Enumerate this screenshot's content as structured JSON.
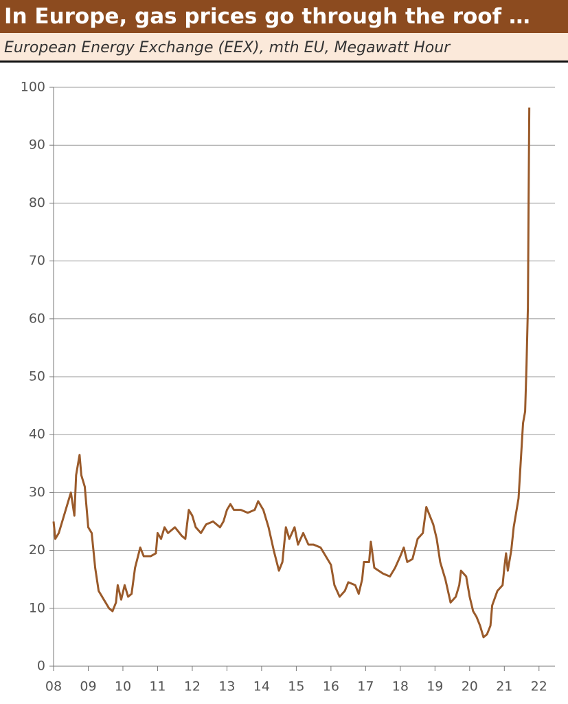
{
  "chart_data": {
    "type": "line",
    "title": "In Europe, gas prices go through the roof …",
    "subtitle": "European Energy Exchange (EEX), mth EU, Megawatt Hour",
    "xlim": [
      2008,
      2022.46
    ],
    "ylim": [
      0,
      100
    ],
    "xticks": [
      {
        "value": 2008,
        "label": "08"
      },
      {
        "value": 2009,
        "label": "09"
      },
      {
        "value": 2010,
        "label": "10"
      },
      {
        "value": 2011,
        "label": "11"
      },
      {
        "value": 2012,
        "label": "12"
      },
      {
        "value": 2013,
        "label": "13"
      },
      {
        "value": 2014,
        "label": "14"
      },
      {
        "value": 2015,
        "label": "15"
      },
      {
        "value": 2016,
        "label": "16"
      },
      {
        "value": 2017,
        "label": "17"
      },
      {
        "value": 2018,
        "label": "18"
      },
      {
        "value": 2019,
        "label": "19"
      },
      {
        "value": 2020,
        "label": "20"
      },
      {
        "value": 2021,
        "label": "21"
      },
      {
        "value": 2022,
        "label": "22"
      }
    ],
    "yticks": [
      0,
      10,
      20,
      30,
      40,
      50,
      60,
      70,
      80,
      90,
      100
    ],
    "grid": true,
    "color": "#9a5a2a",
    "x": [
      2008.0,
      2008.05,
      2008.15,
      2008.3,
      2008.4,
      2008.5,
      2008.6,
      2008.65,
      2008.75,
      2008.8,
      2008.9,
      2009.0,
      2009.1,
      2009.2,
      2009.3,
      2009.45,
      2009.6,
      2009.7,
      2009.8,
      2009.85,
      2009.95,
      2010.05,
      2010.15,
      2010.25,
      2010.35,
      2010.5,
      2010.6,
      2010.8,
      2010.95,
      2011.0,
      2011.1,
      2011.2,
      2011.3,
      2011.5,
      2011.7,
      2011.8,
      2011.9,
      2012.0,
      2012.1,
      2012.25,
      2012.4,
      2012.6,
      2012.8,
      2012.9,
      2013.0,
      2013.1,
      2013.2,
      2013.4,
      2013.6,
      2013.8,
      2013.9,
      2014.05,
      2014.2,
      2014.35,
      2014.5,
      2014.6,
      2014.7,
      2014.8,
      2014.95,
      2015.05,
      2015.2,
      2015.35,
      2015.5,
      2015.7,
      2015.85,
      2016.0,
      2016.1,
      2016.25,
      2016.4,
      2016.5,
      2016.7,
      2016.8,
      2016.9,
      2016.95,
      2017.1,
      2017.15,
      2017.25,
      2017.5,
      2017.7,
      2017.85,
      2018.0,
      2018.1,
      2018.2,
      2018.35,
      2018.5,
      2018.65,
      2018.75,
      2018.85,
      2018.95,
      2019.05,
      2019.15,
      2019.3,
      2019.45,
      2019.6,
      2019.7,
      2019.75,
      2019.9,
      2020.0,
      2020.1,
      2020.2,
      2020.3,
      2020.4,
      2020.5,
      2020.6,
      2020.65,
      2020.8,
      2020.95,
      2021.0,
      2021.05,
      2021.1,
      2021.2,
      2021.27,
      2021.41,
      2021.47,
      2021.54,
      2021.6,
      2021.64,
      2021.68,
      2021.7,
      2021.72
    ],
    "values": [
      25,
      22,
      23,
      26,
      28,
      30,
      26,
      33,
      36.5,
      33,
      31,
      24,
      23,
      17,
      13,
      11.5,
      10,
      9.5,
      11,
      14,
      11.5,
      14,
      12,
      12.5,
      17,
      20.5,
      19,
      19,
      19.5,
      23,
      22,
      24,
      23,
      24,
      22.5,
      22,
      27,
      26,
      24,
      23,
      24.5,
      25,
      24,
      25,
      27,
      28,
      27,
      27,
      26.5,
      27,
      28.5,
      27,
      24,
      20,
      16.5,
      18,
      24,
      22,
      24,
      21,
      23,
      21,
      21,
      20.5,
      19,
      17.5,
      14,
      12,
      13,
      14.5,
      14,
      12.5,
      15,
      18,
      18,
      21.5,
      17,
      16,
      15.5,
      17,
      19,
      20.5,
      18,
      18.5,
      22,
      23,
      27.5,
      26,
      24.5,
      22,
      18,
      15,
      11,
      12,
      14,
      16.5,
      15.5,
      12,
      9.5,
      8.5,
      7,
      5,
      5.5,
      7,
      10.5,
      13,
      14,
      17,
      19.5,
      16.5,
      20,
      24,
      29,
      35,
      42,
      44,
      52,
      62,
      80,
      96.5
    ]
  }
}
